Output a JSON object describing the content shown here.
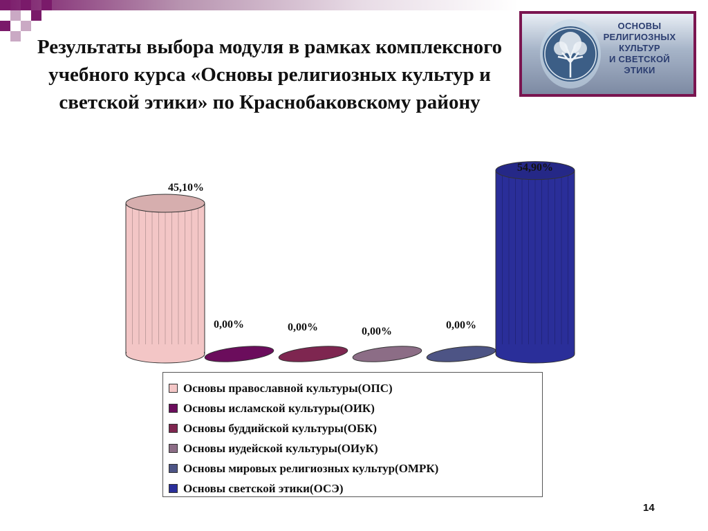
{
  "title": "Результаты выбора модуля в рамках комплексного учебного курса «Основы религиозных культур и светской этики» по Краснобаковскому району",
  "logo": {
    "text": "ОСНОВЫ\nРЕЛИГИОЗНЫХ\nКУЛЬТУР\nИ СВЕТСКОЙ\nЭТИКИ"
  },
  "page_number": "14",
  "colors": {
    "accent": "#7a1a6a",
    "series": [
      "#f3c6c6",
      "#6b0d5c",
      "#7e2650",
      "#8c6d86",
      "#4d5485",
      "#2a2e99"
    ]
  },
  "chart_data": {
    "type": "bar",
    "style": "3d-cylinder",
    "categories": [
      "Основы православной культуры(ОПС)",
      "Основы исламской культуры(ОИК)",
      "Основы буддийской культуры(ОБК)",
      "Основы иудейской культуры(ОИуК)",
      "Основы мировых религиозных культур(ОМРК)",
      "Основы светской этики(ОСЭ)"
    ],
    "values": [
      45.1,
      0,
      0,
      0,
      0,
      54.9
    ],
    "data_labels": [
      "45,10%",
      "0,00%",
      "0,00%",
      "0,00%",
      "0,00%",
      "54,90%"
    ],
    "ylim": [
      0,
      60
    ],
    "legend": "bottom",
    "grid": false
  }
}
